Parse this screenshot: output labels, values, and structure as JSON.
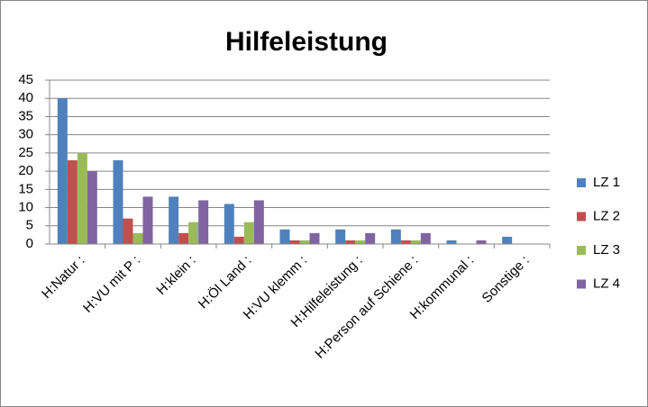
{
  "chart_data": {
    "type": "bar",
    "title": "Hilfeleistung",
    "categories": [
      "H:Natur :",
      "H:VU mit P :",
      "H:klein :",
      "H:Öl Land :",
      "H:VU klemm :",
      "H:Hilfeleistung :",
      "H:Person auf Schiene :",
      "H:kommunal :",
      "Sonstige :"
    ],
    "series": [
      {
        "name": "LZ 1",
        "color": "#4f81bd",
        "values": [
          40,
          23,
          13,
          11,
          4,
          4,
          4,
          1,
          2
        ]
      },
      {
        "name": "LZ 2",
        "color": "#c0504d",
        "values": [
          23,
          7,
          3,
          2,
          1,
          1,
          1,
          0,
          0
        ]
      },
      {
        "name": "LZ 3",
        "color": "#9bbb59",
        "values": [
          25,
          3,
          6,
          6,
          1,
          1,
          1,
          0,
          0
        ]
      },
      {
        "name": "LZ 4",
        "color": "#8064a2",
        "values": [
          20,
          13,
          12,
          12,
          3,
          3,
          3,
          1,
          0
        ]
      }
    ],
    "ylim": [
      0,
      45
    ],
    "yticks": [
      0,
      5,
      10,
      15,
      20,
      25,
      30,
      35,
      40,
      45
    ],
    "grid": true,
    "legend": "right"
  }
}
